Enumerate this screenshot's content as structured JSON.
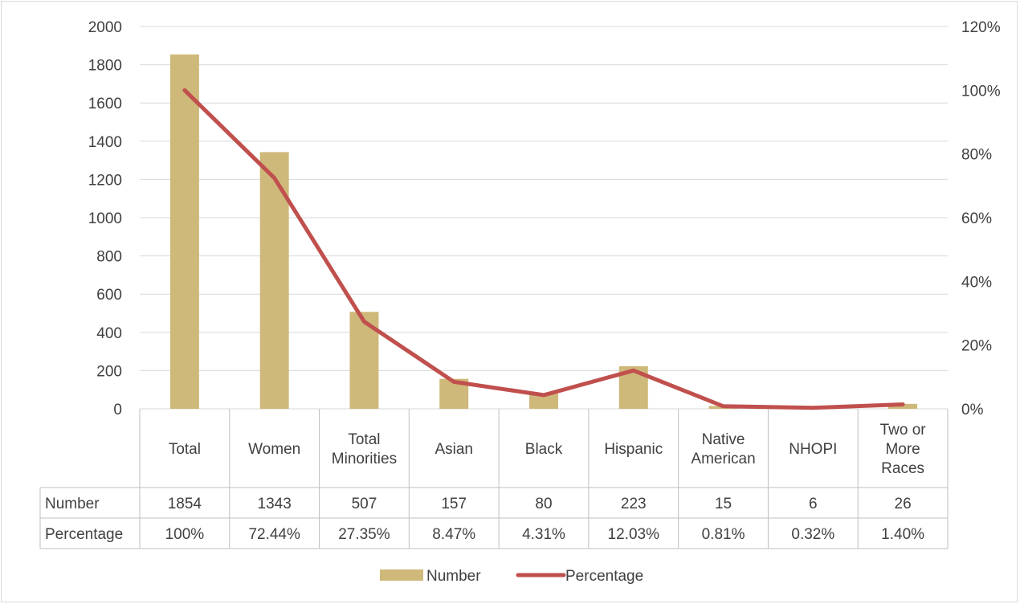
{
  "colors": {
    "bar": "#cfb97a",
    "line": "#c0504d",
    "grid": "#d9d9d9",
    "text": "#404040"
  },
  "chart_data": {
    "type": "bar",
    "categories": [
      [
        "Total"
      ],
      [
        "Women"
      ],
      [
        "Total",
        "Minorities"
      ],
      [
        "Asian"
      ],
      [
        "Black"
      ],
      [
        "Hispanic"
      ],
      [
        "Native",
        "American"
      ],
      [
        "NHOPI"
      ],
      [
        "Two or",
        "More",
        "Races"
      ]
    ],
    "series": [
      {
        "name": "Number",
        "kind": "bar",
        "axis": "left",
        "values": [
          1854,
          1343,
          507,
          157,
          80,
          223,
          15,
          6,
          26
        ]
      },
      {
        "name": "Percentage",
        "kind": "line",
        "axis": "right",
        "values": [
          100,
          72.44,
          27.35,
          8.47,
          4.31,
          12.03,
          0.81,
          0.32,
          1.4
        ]
      }
    ],
    "y_left": {
      "min": 0,
      "max": 2000,
      "step": 200,
      "ticks": [
        "0",
        "200",
        "400",
        "600",
        "800",
        "1000",
        "1200",
        "1400",
        "1600",
        "1800",
        "2000"
      ]
    },
    "y_right": {
      "min": 0,
      "max": 120,
      "step": 20,
      "ticks": [
        "0%",
        "20%",
        "40%",
        "60%",
        "80%",
        "100%",
        "120%"
      ]
    },
    "grid": true,
    "legend_position": "bottom",
    "data_table": {
      "row_labels": [
        "Number",
        "Percentage"
      ],
      "rows": [
        [
          "1854",
          "1343",
          "507",
          "157",
          "80",
          "223",
          "15",
          "6",
          "26"
        ],
        [
          "100%",
          "72.44%",
          "27.35%",
          "8.47%",
          "4.31%",
          "12.03%",
          "0.81%",
          "0.32%",
          "1.40%"
        ]
      ]
    }
  }
}
